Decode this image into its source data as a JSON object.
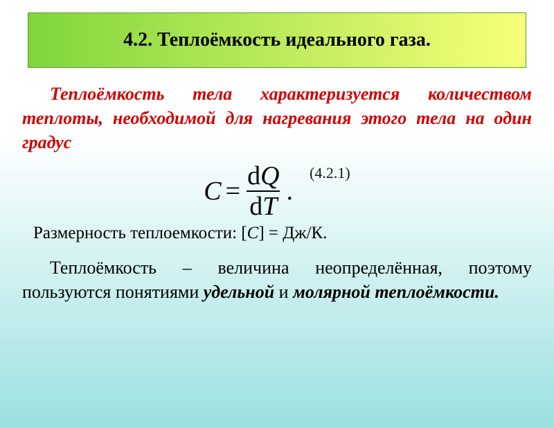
{
  "colors": {
    "slide_bg_top": "#ffffff",
    "slide_bg_bottom": "#9be0e0",
    "header_bg_left": "#7fd63c",
    "header_bg_right": "#f8ff7a",
    "header_border": "#5aa028",
    "header_text": "#000000",
    "definition_text": "#d10000",
    "body_text": "#000000",
    "eq_number_text": "#1a1a1a"
  },
  "header": {
    "title": "4.2. Теплоёмкость идеального газа."
  },
  "definition": {
    "text": "Теплоёмкость тела характеризуется количеством теплоты, необходимой для нагревания этого тела на один градус"
  },
  "formula": {
    "lhs": "C",
    "eq": "=",
    "num_d": "d",
    "num_var": "Q",
    "den_d": "d",
    "den_var": "T",
    "tail": ".",
    "number": "(4.2.1)"
  },
  "dimension": {
    "prefix": "Размерность теплоемкости: [",
    "var": "C",
    "suffix": "] = Дж/К."
  },
  "note": {
    "part1": "Теплоёмкость – величина неопределённая, поэтому пользуются понятиями ",
    "bold1": "удельной",
    "mid": " и ",
    "bold2": "молярной теплоёмкости."
  }
}
